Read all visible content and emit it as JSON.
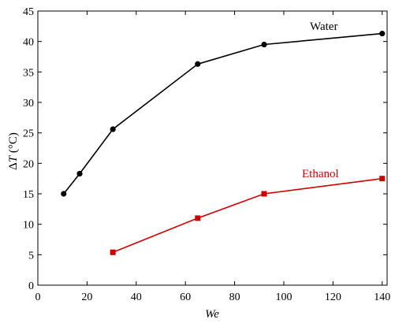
{
  "chart_data": {
    "type": "line",
    "title": "",
    "xlabel": "We",
    "ylabel": "ΔT (°C)",
    "ylabel_parts": {
      "delta": "Δ",
      "var": "T",
      "unit": " (°C)"
    },
    "xlim": [
      0,
      142
    ],
    "ylim": [
      0,
      45
    ],
    "xticks": [
      0,
      20,
      40,
      60,
      80,
      100,
      120,
      140
    ],
    "yticks": [
      0,
      5,
      10,
      15,
      20,
      25,
      30,
      35,
      40,
      45
    ],
    "grid": false,
    "series": [
      {
        "name": "Water",
        "color": "#000000",
        "marker": "circle",
        "x": [
          10.5,
          17,
          30.5,
          65,
          92,
          140
        ],
        "y": [
          15,
          18.3,
          25.6,
          36.3,
          39.5,
          41.3
        ]
      },
      {
        "name": "Ethanol",
        "color": "#cc0000",
        "marker": "square",
        "x": [
          30.5,
          65,
          92,
          140
        ],
        "y": [
          5.4,
          11,
          15,
          17.5
        ]
      }
    ]
  }
}
